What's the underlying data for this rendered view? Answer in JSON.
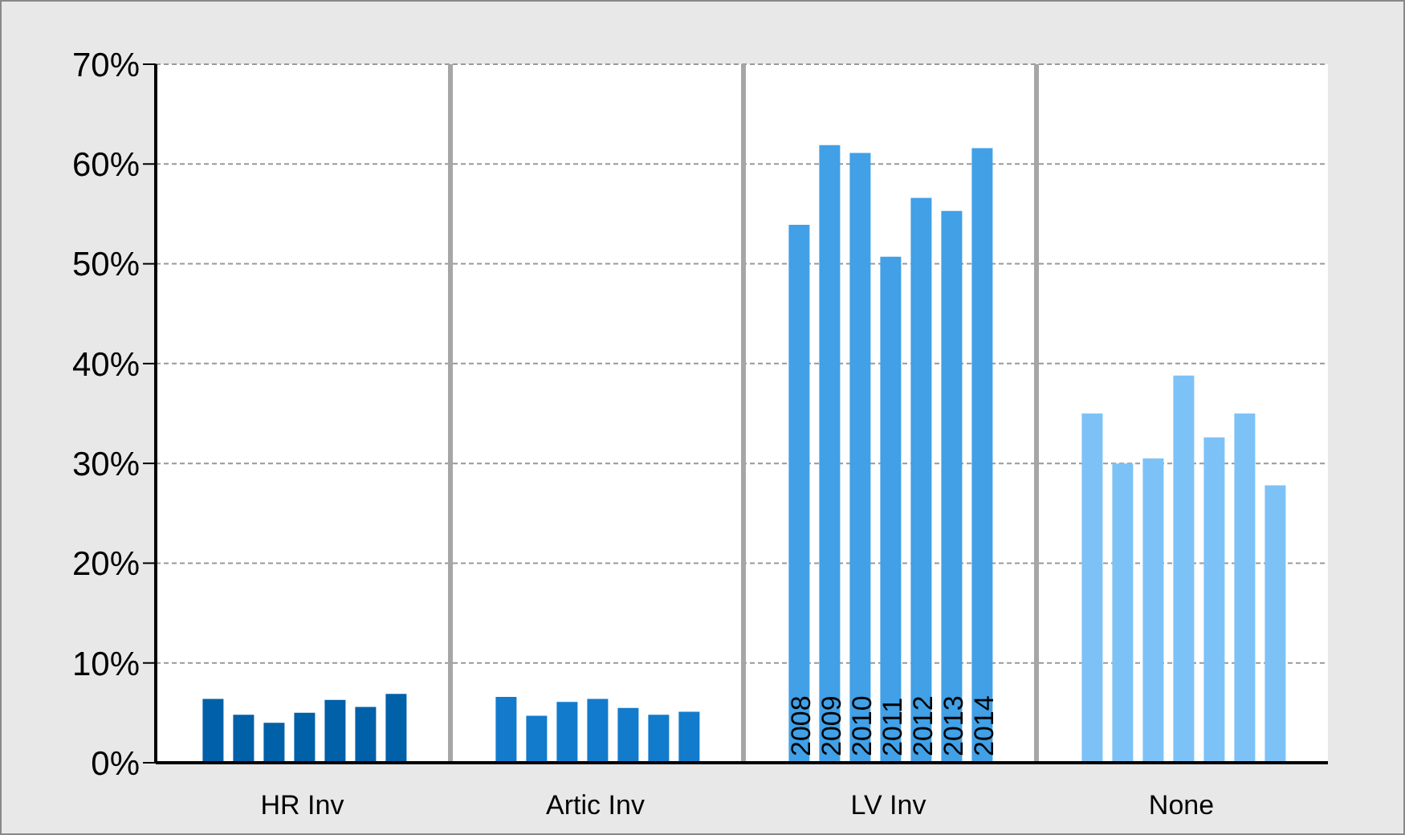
{
  "chart_data": {
    "type": "bar",
    "categories": [
      "HR Inv",
      "Artic Inv",
      "LV Inv",
      "None"
    ],
    "series": [
      {
        "name": "2008",
        "colors": [
          "#0060a8",
          "#127bcc",
          "#41a0e6",
          "#7dc2f7"
        ],
        "values": [
          6.4,
          6.6,
          53.9,
          35.0
        ]
      },
      {
        "name": "2009",
        "colors": [
          "#0060a8",
          "#127bcc",
          "#41a0e6",
          "#7dc2f7"
        ],
        "values": [
          4.8,
          4.7,
          61.9,
          30.0
        ]
      },
      {
        "name": "2010",
        "colors": [
          "#0060a8",
          "#127bcc",
          "#41a0e6",
          "#7dc2f7"
        ],
        "values": [
          4.0,
          6.1,
          61.1,
          30.5
        ]
      },
      {
        "name": "2011",
        "colors": [
          "#0060a8",
          "#127bcc",
          "#41a0e6",
          "#7dc2f7"
        ],
        "values": [
          5.0,
          6.4,
          50.7,
          38.8
        ]
      },
      {
        "name": "2012",
        "colors": [
          "#0060a8",
          "#127bcc",
          "#41a0e6",
          "#7dc2f7"
        ],
        "values": [
          6.3,
          5.5,
          56.6,
          32.6
        ]
      },
      {
        "name": "2013",
        "colors": [
          "#0060a8",
          "#127bcc",
          "#41a0e6",
          "#7dc2f7"
        ],
        "values": [
          5.6,
          4.8,
          55.3,
          35.0
        ]
      },
      {
        "name": "2014",
        "colors": [
          "#0060a8",
          "#127bcc",
          "#41a0e6",
          "#7dc2f7"
        ],
        "values": [
          6.9,
          5.1,
          61.6,
          27.8
        ]
      }
    ],
    "ylim": [
      0,
      70
    ],
    "yticks": [
      {
        "value": 0,
        "label": "0%"
      },
      {
        "value": 10,
        "label": "10%"
      },
      {
        "value": 20,
        "label": "20%"
      },
      {
        "value": 30,
        "label": "30%"
      },
      {
        "value": 40,
        "label": "40%"
      },
      {
        "value": 50,
        "label": "50%"
      },
      {
        "value": 60,
        "label": "60%"
      },
      {
        "value": 70,
        "label": "70%"
      }
    ],
    "grid": true,
    "legend": false
  }
}
